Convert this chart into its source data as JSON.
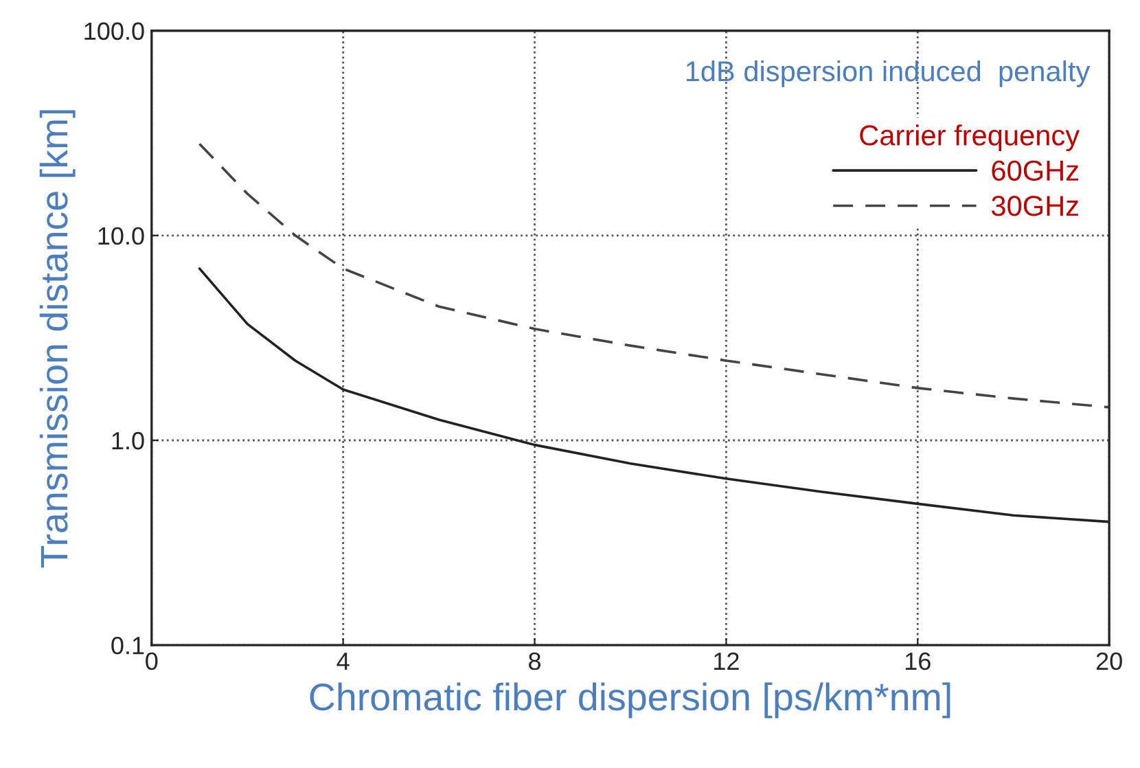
{
  "chart_data": {
    "type": "line",
    "xlabel": "Chromatic fiber dispersion [ps/km*nm]",
    "ylabel": "Transmission distance [km]",
    "legend_title": "Carrier frequency",
    "annotations": [
      "1dB dispersion induced  penalty"
    ],
    "x": [
      1,
      2,
      3,
      4,
      6,
      8,
      10,
      12,
      14,
      16,
      18,
      20
    ],
    "series": [
      {
        "name": "60GHz",
        "color": "#222222",
        "line_style": "solid",
        "values": [
          6.9,
          3.7,
          2.45,
          1.77,
          1.26,
          0.95,
          0.77,
          0.65,
          0.56,
          0.49,
          0.43,
          0.4
        ]
      },
      {
        "name": "30GHz",
        "color": "#444444",
        "line_style": "dashed",
        "values": [
          28,
          16,
          10,
          6.9,
          4.5,
          3.5,
          2.9,
          2.45,
          2.1,
          1.8,
          1.6,
          1.45
        ]
      }
    ],
    "log": "y",
    "xlim": [
      0,
      20
    ],
    "xticks": [
      0,
      4,
      8,
      12,
      16,
      20
    ],
    "ylim": [
      0.1,
      100
    ],
    "yticks": [
      {
        "value": 0.1,
        "label": "0.1"
      },
      {
        "value": 1,
        "label": "1.0"
      },
      {
        "value": 10,
        "label": "10.0"
      },
      {
        "value": 100,
        "label": "100.0"
      }
    ],
    "grid": true,
    "legend": "top right"
  }
}
